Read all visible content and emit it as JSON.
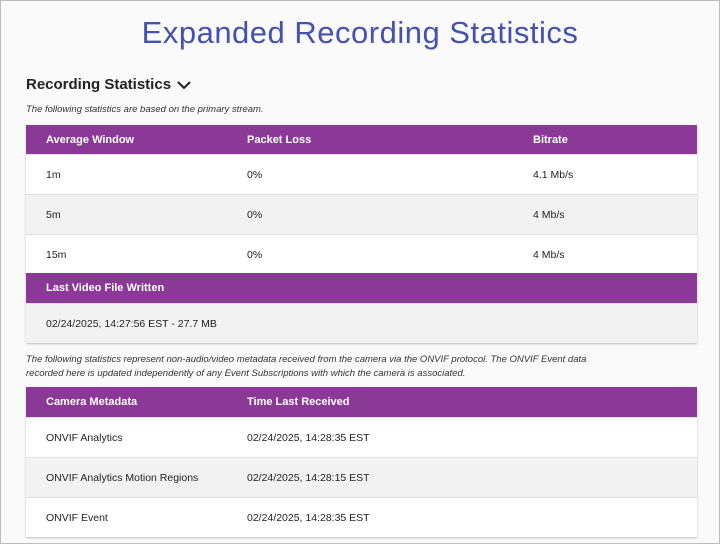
{
  "title": "Expanded Recording Statistics",
  "section": {
    "heading": "Recording Statistics",
    "note": "The following statistics are based on the primary stream."
  },
  "stream_table": {
    "headers": [
      "Average Window",
      "Packet Loss",
      "Bitrate"
    ],
    "rows": [
      [
        "1m",
        "0%",
        "4.1 Mb/s"
      ],
      [
        "5m",
        "0%",
        "4 Mb/s"
      ],
      [
        "15m",
        "0%",
        "4 Mb/s"
      ]
    ]
  },
  "file_table": {
    "headers": [
      "Last Video File Written"
    ],
    "rows": [
      [
        "02/24/2025, 14:27:56 EST - 27.7 MB"
      ]
    ]
  },
  "metadata_note": "The following statistics represent non-audio/video metadata received from the camera via the ONVIF protocol. The ONVIF Event data recorded here is updated independently of any Event Subscriptions with which the camera is associated.",
  "metadata_table": {
    "headers": [
      "Camera Metadata",
      "Time Last Received"
    ],
    "rows": [
      [
        "ONVIF Analytics",
        "02/24/2025, 14:28:35 EST"
      ],
      [
        "ONVIF Analytics Motion Regions",
        "02/24/2025, 14:28:15 EST"
      ],
      [
        "ONVIF Event",
        "02/24/2025, 14:28:35 EST"
      ]
    ]
  }
}
